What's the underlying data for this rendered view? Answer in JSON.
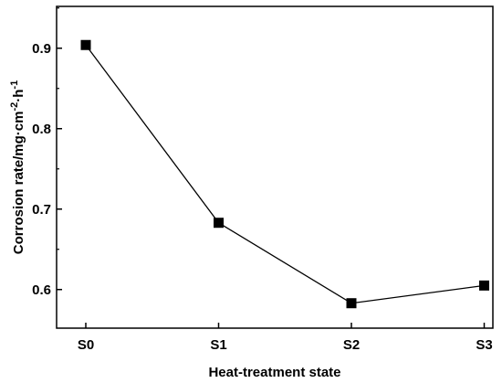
{
  "chart_data": {
    "type": "line",
    "categories": [
      "S0",
      "S1",
      "S2",
      "S3"
    ],
    "series": [
      {
        "values": [
          0.904,
          0.683,
          0.583,
          0.605
        ]
      }
    ],
    "xlabel": "Heat-treatment state",
    "ylabel": {
      "base": "Corrosion rate/mg·cm",
      "sup1": "-2",
      "mid": "·h",
      "sup2": "-1"
    },
    "ylim": [
      0.552,
      0.952
    ],
    "yticks": [
      0.6,
      0.7,
      0.8,
      0.9
    ],
    "ytick_labels": [
      "0.6",
      "0.7",
      "0.8",
      "0.9"
    ],
    "marker": "square",
    "line_color": "#000000",
    "grid": false,
    "legend": false
  }
}
